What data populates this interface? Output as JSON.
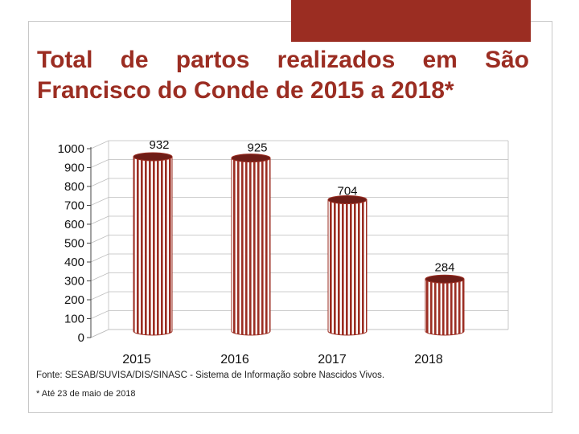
{
  "title": "Total de partos realizados em São Francisco do Conde de 2015 a 2018*",
  "source": "Fonte: SESAB/SUVISA/DIS/SINASC - Sistema de Informação sobre Nascidos Vivos.",
  "note": "* Até 23 de maio de 2018",
  "colors": {
    "accent": "#9b2d22",
    "bar": "#9b2d22",
    "bar_top": "#6e1d17"
  },
  "chart_data": {
    "type": "bar",
    "title": "Total de partos realizados em São Francisco do Conde de 2015 a 2018*",
    "xlabel": "",
    "ylabel": "",
    "categories": [
      "2015",
      "2016",
      "2017",
      "2018"
    ],
    "values": [
      932,
      925,
      704,
      284
    ],
    "value_labels": [
      "932",
      "925",
      "704",
      "284"
    ],
    "ylim": [
      0,
      1000
    ],
    "yticks": [
      0,
      100,
      200,
      300,
      400,
      500,
      600,
      700,
      800,
      900,
      1000
    ],
    "grid": true,
    "legend": "none"
  }
}
